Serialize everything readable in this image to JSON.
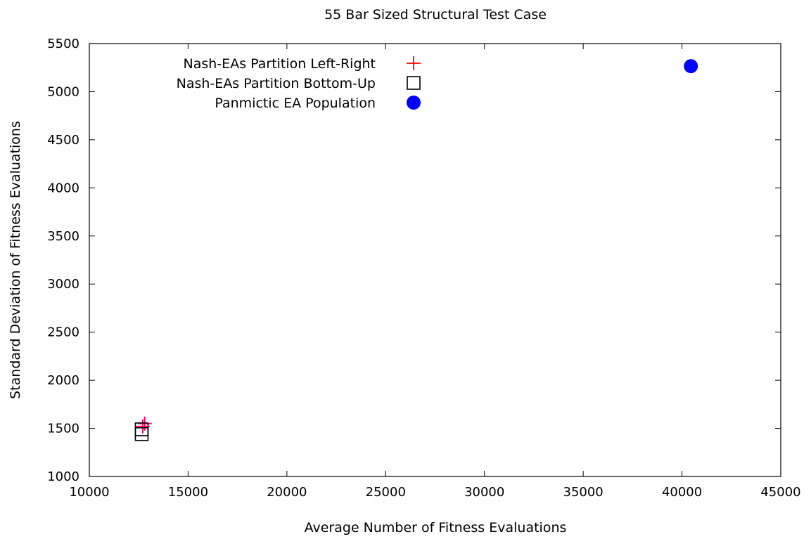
{
  "chart_data": {
    "type": "scatter",
    "title": "55 Bar Sized Structural Test Case",
    "xlabel": "Average Number of Fitness Evaluations",
    "ylabel": "Standard Deviation of Fitness Evaluations",
    "xlim": [
      10000,
      45000
    ],
    "ylim": [
      1000,
      5500
    ],
    "xticks": [
      "10000",
      "15000",
      "20000",
      "25000",
      "30000",
      "35000",
      "40000",
      "45000"
    ],
    "yticks": [
      "1000",
      "1500",
      "2000",
      "2500",
      "3000",
      "3500",
      "4000",
      "4500",
      "5000",
      "5500"
    ],
    "grid": false,
    "legend_position": "top-center",
    "series": [
      {
        "name": "Nash-EAs Partition Left-Right",
        "marker": "plus",
        "color": "#ff0000",
        "points": [
          {
            "x": 12800,
            "y": 1550
          },
          {
            "x": 12700,
            "y": 1520
          }
        ]
      },
      {
        "name": "Nash-EAs Partition Bottom-Up",
        "marker": "square",
        "color": "#000000",
        "points": [
          {
            "x": 12650,
            "y": 1490
          },
          {
            "x": 12650,
            "y": 1440
          }
        ]
      },
      {
        "name": "Panmictic EA Population",
        "marker": "circle",
        "color": "#0000ff",
        "points": [
          {
            "x": 40450,
            "y": 5265
          }
        ]
      }
    ]
  }
}
